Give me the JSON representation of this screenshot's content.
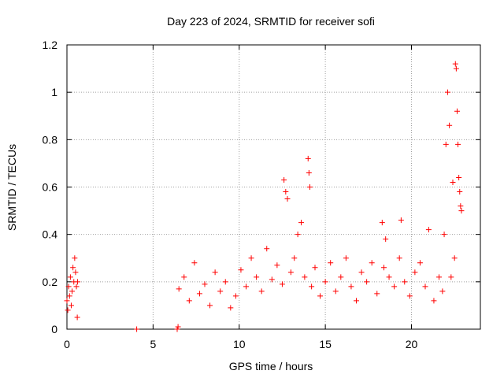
{
  "chart_data": {
    "type": "scatter",
    "title": "Day 223 of 2024, SRMTID for receiver sofi",
    "xlabel": "GPS time / hours",
    "ylabel": "SRMTID / TECUs",
    "xlim": [
      0,
      24
    ],
    "ylim": [
      0,
      1.2
    ],
    "x_ticks": [
      0,
      5,
      10,
      15,
      20
    ],
    "x_tick_labels": [
      "0",
      "5",
      "10",
      "15",
      "20"
    ],
    "y_ticks": [
      0,
      0.2,
      0.4,
      0.6,
      0.8,
      1.0,
      1.2
    ],
    "y_tick_labels": [
      "0",
      "0.2",
      "0.4",
      "0.6",
      "0.8",
      "1",
      "1.2"
    ],
    "grid": true,
    "marker": "plus",
    "color": "#ff0000",
    "series": [
      {
        "name": "SRMTID",
        "x": [
          0.0,
          0.05,
          0.1,
          0.15,
          0.2,
          0.25,
          0.3,
          0.35,
          0.4,
          0.45,
          0.5,
          0.55,
          0.6,
          0.62,
          4.05,
          6.4,
          6.45,
          6.5,
          6.8,
          7.1,
          7.4,
          7.7,
          8.0,
          8.3,
          8.6,
          8.9,
          9.2,
          9.5,
          9.8,
          10.1,
          10.4,
          10.7,
          11.0,
          11.3,
          11.6,
          11.9,
          12.2,
          12.5,
          12.6,
          12.7,
          12.8,
          13.0,
          13.2,
          13.4,
          13.6,
          13.8,
          14.0,
          14.05,
          14.1,
          14.2,
          14.4,
          14.7,
          15.0,
          15.3,
          15.6,
          15.9,
          16.2,
          16.5,
          16.8,
          17.1,
          17.4,
          17.7,
          18.0,
          18.3,
          18.4,
          18.5,
          18.7,
          19.0,
          19.3,
          19.4,
          19.6,
          19.9,
          20.2,
          20.5,
          20.8,
          21.0,
          21.3,
          21.6,
          21.8,
          21.9,
          22.0,
          22.1,
          22.2,
          22.3,
          22.4,
          22.5,
          22.55,
          22.6,
          22.65,
          22.7,
          22.75,
          22.8,
          22.85,
          22.9
        ],
        "values": [
          0.12,
          0.08,
          0.18,
          0.14,
          0.22,
          0.1,
          0.16,
          0.26,
          0.2,
          0.3,
          0.24,
          0.18,
          0.05,
          0.2,
          0.0,
          0.0,
          0.01,
          0.17,
          0.22,
          0.12,
          0.28,
          0.15,
          0.19,
          0.1,
          0.24,
          0.16,
          0.2,
          0.09,
          0.14,
          0.25,
          0.18,
          0.3,
          0.22,
          0.16,
          0.34,
          0.21,
          0.27,
          0.19,
          0.63,
          0.58,
          0.55,
          0.24,
          0.3,
          0.4,
          0.45,
          0.22,
          0.72,
          0.66,
          0.6,
          0.18,
          0.26,
          0.14,
          0.2,
          0.28,
          0.16,
          0.22,
          0.3,
          0.18,
          0.12,
          0.24,
          0.2,
          0.28,
          0.15,
          0.45,
          0.26,
          0.38,
          0.22,
          0.18,
          0.3,
          0.46,
          0.2,
          0.14,
          0.24,
          0.28,
          0.18,
          0.42,
          0.12,
          0.22,
          0.16,
          0.4,
          0.78,
          1.0,
          0.86,
          0.22,
          0.62,
          0.3,
          1.12,
          1.1,
          0.92,
          0.78,
          0.64,
          0.58,
          0.52,
          0.5
        ]
      }
    ]
  }
}
